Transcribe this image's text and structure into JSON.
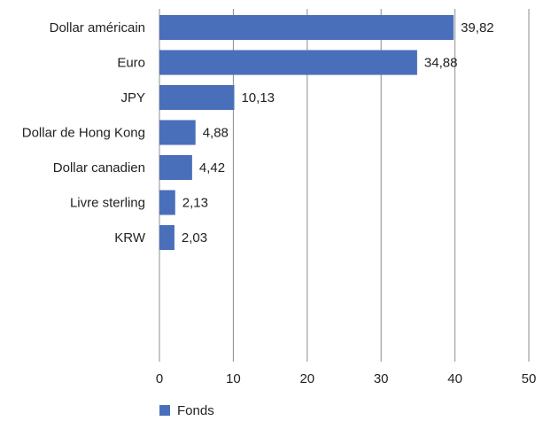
{
  "chart_data": {
    "type": "bar",
    "orientation": "horizontal",
    "categories": [
      "Dollar américain",
      "Euro",
      "JPY",
      "Dollar de Hong Kong",
      "Dollar canadien",
      "Livre sterling",
      "KRW"
    ],
    "series": [
      {
        "name": "Fonds",
        "values": [
          39.82,
          34.88,
          10.13,
          4.88,
          4.42,
          2.13,
          2.03
        ],
        "value_labels": [
          "39,82",
          "34,88",
          "10,13",
          "4,88",
          "4,42",
          "2,13",
          "2,03"
        ],
        "color": "#4a6fba"
      }
    ],
    "xlim": [
      0,
      50
    ],
    "xticks": [
      0,
      10,
      20,
      30,
      40,
      50
    ],
    "xtick_labels": [
      "0",
      "10",
      "20",
      "30",
      "40",
      "50"
    ],
    "grid": "vertical",
    "legend": "bottom-left"
  }
}
